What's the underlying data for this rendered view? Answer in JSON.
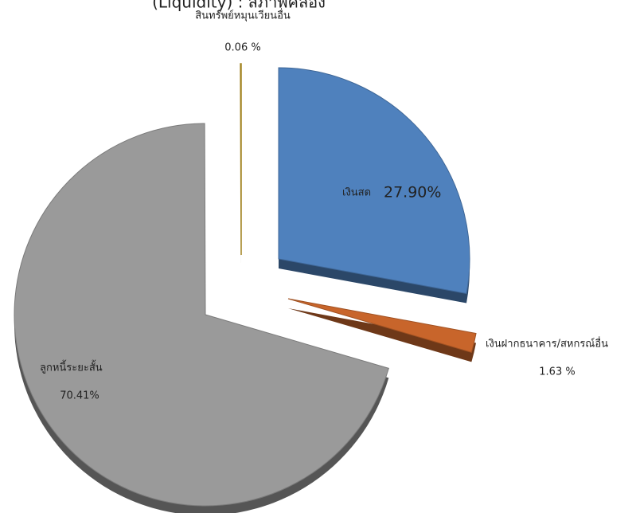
{
  "chart_data": {
    "type": "pie",
    "title": "(Liquidity) : สภาพคล่อง",
    "categories": [
      "เงินสด",
      "เงินฝากธนาคาร/สหกรณ์อื่น",
      "ลูกหนี้ระยะสั้น",
      "สินทรัพย์หมุนเวียนอื่น"
    ],
    "values": [
      27.9,
      1.63,
      70.41,
      0.06
    ],
    "value_labels": [
      "27.90%",
      "1.63 %",
      "70.41%",
      "0.06 %"
    ],
    "colors": [
      "#4f81bd",
      "#c8652b",
      "#9a9a9a",
      "#c9a227"
    ]
  }
}
